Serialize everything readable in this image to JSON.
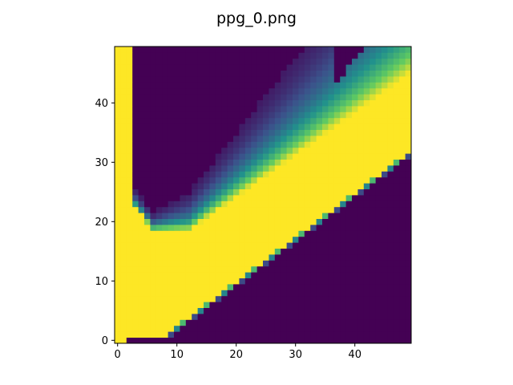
{
  "chart_data": {
    "type": "heatmap",
    "title": "ppg_0.png",
    "xlabel": "",
    "ylabel": "",
    "colormap": "viridis",
    "grid": false,
    "legend": "none",
    "x_range": [
      0,
      49
    ],
    "y_range": [
      0,
      49
    ],
    "y_origin": "lower",
    "x_ticks": [
      0,
      10,
      20,
      30,
      40
    ],
    "y_ticks": [
      0,
      10,
      20,
      30,
      40
    ],
    "value_range": [
      0,
      1
    ],
    "shape": [
      50,
      50
    ],
    "colors": {
      "low": "#440154",
      "high": "#fde725"
    }
  }
}
